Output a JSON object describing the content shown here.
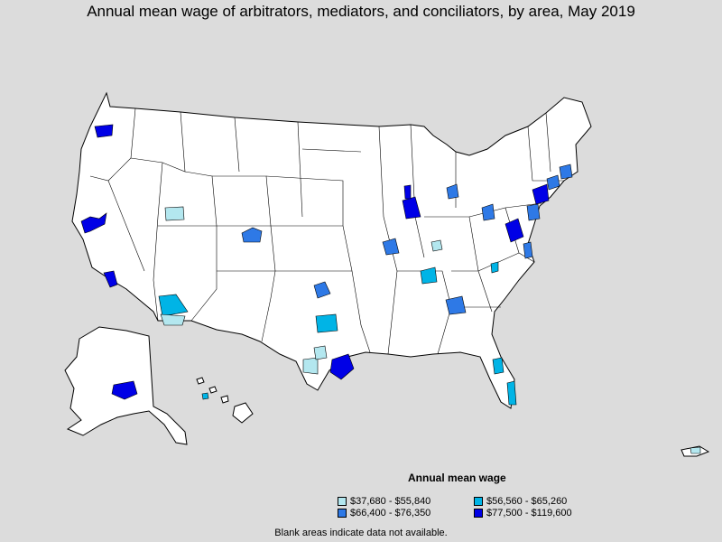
{
  "title": "Annual mean wage of arbitrators, mediators, and conciliators, by area, May 2019",
  "legend": {
    "title": "Annual mean wage",
    "items": [
      {
        "label": "$37,680 - $55,840",
        "color": "#b3e7ef"
      },
      {
        "label": "$56,560 - $65,260",
        "color": "#00b4e6"
      },
      {
        "label": "$66,400 - $76,350",
        "color": "#2e79e6"
      },
      {
        "label": "$77,500 - $119,600",
        "color": "#0000e6"
      }
    ]
  },
  "footnote": "Blank areas indicate data not available.",
  "colors": {
    "background": "#dcdcdc",
    "land": "#ffffff",
    "border": "#000000"
  }
}
